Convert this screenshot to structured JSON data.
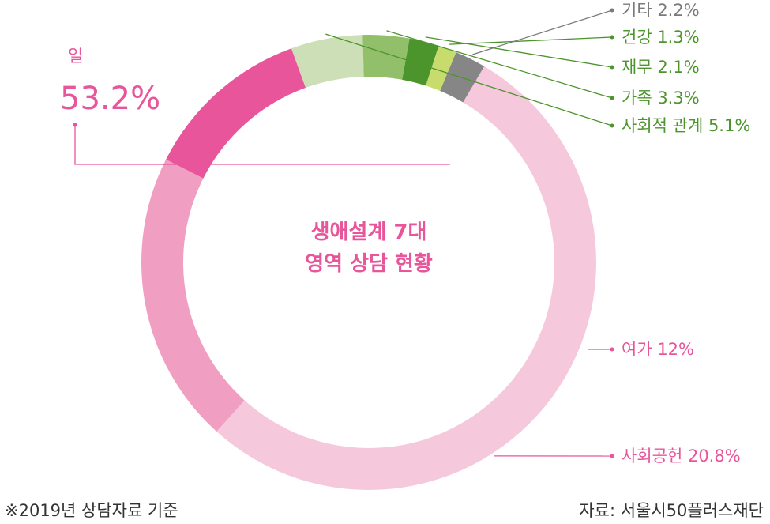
{
  "chart_data": {
    "type": "pie",
    "donut": true,
    "title": "생애설계 7대 영역 상담 현황",
    "title_lines": [
      "생애설계 7대",
      "영역 상담 현황"
    ],
    "slices": [
      {
        "name": "일",
        "value": 53.2,
        "label": "53.2%",
        "color": "#f6c8dc"
      },
      {
        "name": "사회공헌",
        "value": 20.8,
        "label": "사회공헌 20.8%",
        "color": "#f19ec3"
      },
      {
        "name": "여가",
        "value": 12,
        "label": "여가 12%",
        "color": "#e8559a"
      },
      {
        "name": "사회적 관계",
        "value": 5.1,
        "label": "사회적 관계 5.1%",
        "color": "#cddfb7"
      },
      {
        "name": "가족",
        "value": 3.3,
        "label": "가족 3.3%",
        "color": "#92c06a"
      },
      {
        "name": "재무",
        "value": 2.1,
        "label": "재무 2.1%",
        "color": "#4c942c"
      },
      {
        "name": "건강",
        "value": 1.3,
        "label": "건강 1.3%",
        "color": "#c8dc6e"
      },
      {
        "name": "기타",
        "value": 2.2,
        "label": "기타 2.2%",
        "color": "#868686"
      }
    ],
    "label_colors": {
      "일": "#e8559a",
      "사회공헌": "#e8559a",
      "여가": "#e8559a",
      "사회적 관계": "#4c942c",
      "가족": "#4c942c",
      "재무": "#4c942c",
      "건강": "#4c942c",
      "기타": "#7a7a7a"
    }
  },
  "footnote": "※2019년 상담자료 기준",
  "source": "자료: 서울시50플러스재단"
}
